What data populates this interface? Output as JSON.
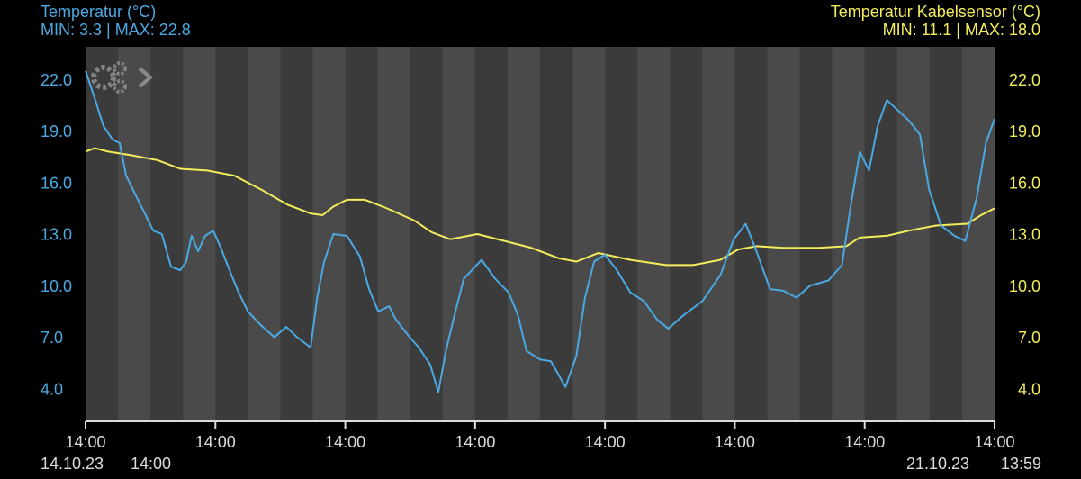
{
  "chart_data": {
    "type": "line",
    "title": "Temperatur (°C)",
    "subtitle": "MIN: 3.3 | MAX: 22.8",
    "title_right": "Temperatur Kabelsensor (°C)",
    "subtitle_right": "MIN: 11.1 | MAX: 18.0",
    "xlim": [
      0,
      168
    ],
    "xticks": [
      {
        "value": 0,
        "label": "14:00"
      },
      {
        "value": 24,
        "label": "14:00"
      },
      {
        "value": 48,
        "label": "14:00"
      },
      {
        "value": 72,
        "label": "14:00"
      },
      {
        "value": 96,
        "label": "14:00"
      },
      {
        "value": 120,
        "label": "14:00"
      },
      {
        "value": 144,
        "label": "14:00"
      },
      {
        "value": 168,
        "label": "14:00"
      }
    ],
    "x_start": [
      "14.10.23",
      "14:00"
    ],
    "x_end": [
      "21.10.23",
      "13:59"
    ],
    "ylim": [
      2.2,
      24.0
    ],
    "yticks": [
      {
        "value": 4,
        "label": "4.0"
      },
      {
        "value": 7,
        "label": "7.0"
      },
      {
        "value": 10,
        "label": "10.0"
      },
      {
        "value": 13,
        "label": "13.0"
      },
      {
        "value": 16,
        "label": "16.0"
      },
      {
        "value": 19,
        "label": "19.0"
      },
      {
        "value": 22,
        "label": "22.0"
      }
    ],
    "y2lim": [
      2.2,
      24.0
    ],
    "y2ticks": [
      {
        "value": 4,
        "label": "4.0"
      },
      {
        "value": 7,
        "label": "7.0"
      },
      {
        "value": 10,
        "label": "10.0"
      },
      {
        "value": 13,
        "label": "13.0"
      },
      {
        "value": 16,
        "label": "16.0"
      },
      {
        "value": 19,
        "label": "19.0"
      },
      {
        "value": 22,
        "label": "22.0"
      }
    ],
    "series": [
      {
        "name": "Temperatur",
        "color": "#4ba9e3",
        "x": [
          0,
          1.7,
          3.3,
          5,
          6.3,
          7.5,
          9.2,
          10.8,
          12.5,
          14.1,
          15.8,
          17.5,
          18.6,
          19.6,
          20.8,
          22.1,
          23.6,
          25,
          26.6,
          28.3,
          30,
          32.4,
          34.9,
          37.1,
          39.1,
          41.6,
          42.8,
          44.1,
          45.8,
          48.3,
          50.7,
          52.4,
          54.1,
          56.1,
          57.4,
          59.9,
          61.6,
          63.7,
          65.2,
          66.6,
          68.2,
          69.9,
          73.2,
          75.7,
          78.2,
          79.9,
          81.5,
          84,
          86,
          88.7,
          90.7,
          92.3,
          94,
          96,
          98.2,
          100.7,
          103.2,
          105.7,
          107.7,
          110.6,
          114,
          117.3,
          119.8,
          122,
          124,
          126.5,
          129,
          131.4,
          133.9,
          137.3,
          139.8,
          141.4,
          143.1,
          144.8,
          146.4,
          148.1,
          149.8,
          152.2,
          154.2,
          155.9,
          158.1,
          160.6,
          162.6,
          164.7,
          166.4,
          168
        ],
        "values": [
          22.6,
          21.0,
          19.4,
          18.6,
          18.4,
          16.5,
          15.4,
          14.4,
          13.3,
          13.1,
          11.2,
          11.0,
          11.5,
          13.0,
          12.1,
          13.0,
          13.3,
          12.3,
          11.0,
          9.7,
          8.6,
          7.8,
          7.1,
          7.7,
          7.1,
          6.5,
          9.4,
          11.5,
          13.1,
          13.0,
          11.8,
          9.9,
          8.6,
          8.9,
          8.1,
          7.1,
          6.5,
          5.5,
          3.9,
          6.3,
          8.4,
          10.5,
          11.6,
          10.5,
          9.7,
          8.4,
          6.3,
          5.8,
          5.7,
          4.2,
          6.0,
          9.4,
          11.5,
          11.9,
          11.0,
          9.7,
          9.2,
          8.1,
          7.6,
          8.4,
          9.2,
          10.7,
          12.8,
          13.7,
          12.1,
          9.9,
          9.8,
          9.4,
          10.1,
          10.4,
          11.3,
          14.7,
          17.9,
          16.8,
          19.4,
          20.9,
          20.4,
          19.7,
          18.9,
          15.7,
          13.6,
          13.0,
          12.7,
          15.2,
          18.4,
          19.8
        ]
      },
      {
        "name": "Temperatur Kabelsensor",
        "color": "#f3ec5b",
        "axis": "y2",
        "x": [
          0,
          1.7,
          4.2,
          8.3,
          13.3,
          17.5,
          22.5,
          27.5,
          32.4,
          37.4,
          41.6,
          43.8,
          45.8,
          48.3,
          51.6,
          55.7,
          60.7,
          64.0,
          67.4,
          72.4,
          77.4,
          82.4,
          87.4,
          90.7,
          94.8,
          100.7,
          107.3,
          112.3,
          117.3,
          120.6,
          124.0,
          129.0,
          135.6,
          140.6,
          143.1,
          148.1,
          152.2,
          157.2,
          163.0,
          165.5,
          168
        ],
        "values": [
          17.9,
          18.1,
          17.9,
          17.7,
          17.4,
          16.9,
          16.8,
          16.5,
          15.7,
          14.8,
          14.3,
          14.2,
          14.7,
          15.1,
          15.1,
          14.6,
          13.9,
          13.2,
          12.8,
          13.1,
          12.7,
          12.3,
          11.7,
          11.5,
          12.0,
          11.6,
          11.3,
          11.3,
          11.6,
          12.2,
          12.4,
          12.3,
          12.3,
          12.4,
          12.9,
          13.0,
          13.3,
          13.6,
          13.7,
          14.2,
          14.6
        ]
      }
    ]
  }
}
